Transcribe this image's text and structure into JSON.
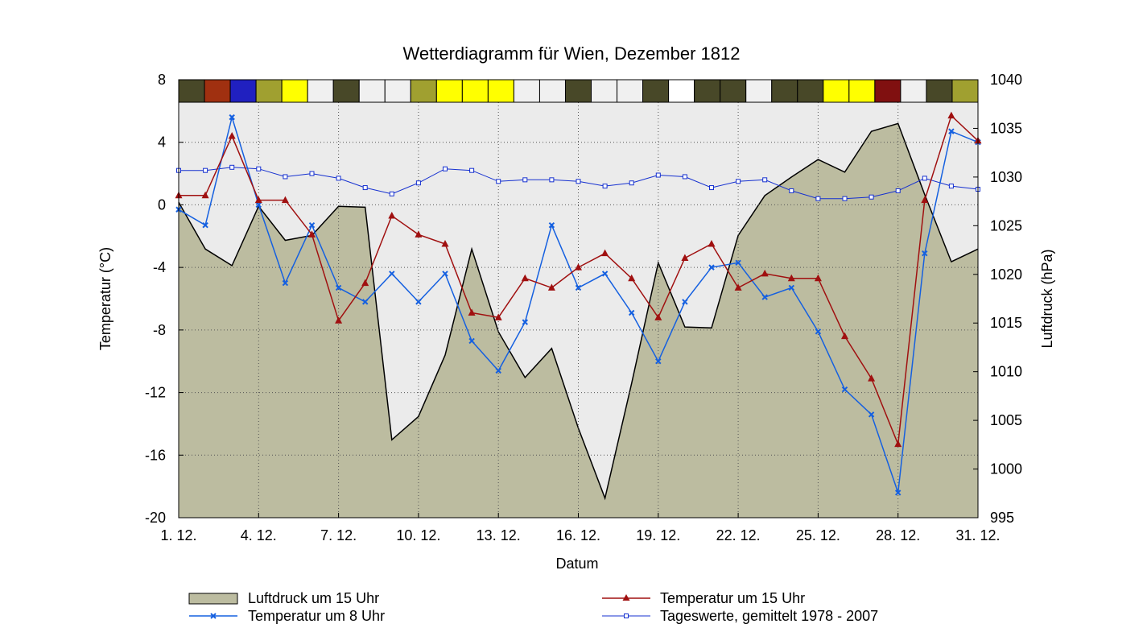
{
  "chart_data": {
    "type": "line",
    "title": "Wetterdiagramm für Wien, Dezember 1812",
    "xlabel": "Datum",
    "ylabel_left": "Temperatur (°C)",
    "ylabel_right": "Luftdruck (hPa)",
    "ylim_left": [
      -20,
      8
    ],
    "ylim_right": [
      995,
      1040
    ],
    "yticks_left": [
      8,
      4,
      0,
      -4,
      -8,
      -12,
      -16,
      -20
    ],
    "yticks_left_labels": [
      "8",
      "4",
      "0",
      "-4",
      "-8",
      "-12",
      "-16",
      "-20"
    ],
    "yticks_right": [
      1040,
      1035,
      1030,
      1025,
      1020,
      1015,
      1010,
      1005,
      1000,
      995
    ],
    "yticks_right_labels": [
      "1040",
      "1035",
      "1030",
      "1025",
      "1020",
      "1015",
      "1010",
      "1005",
      "1000",
      "995"
    ],
    "x": [
      1,
      2,
      3,
      4,
      5,
      6,
      7,
      8,
      9,
      10,
      11,
      12,
      13,
      14,
      15,
      16,
      17,
      18,
      19,
      20,
      21,
      22,
      23,
      24,
      25,
      26,
      27,
      28,
      29,
      30,
      31
    ],
    "x_range": [
      1,
      31
    ],
    "xticks": [
      1,
      4,
      7,
      10,
      13,
      16,
      19,
      22,
      25,
      28,
      31
    ],
    "xtick_labels": [
      "1. 12.",
      "4. 12.",
      "7. 12.",
      "10. 12.",
      "13. 12.",
      "16. 12.",
      "19. 12.",
      "22. 12.",
      "25. 12.",
      "28. 12.",
      "31. 12."
    ],
    "grid": true,
    "series": [
      {
        "name": "Luftdruck um 15 Uhr",
        "kind": "area",
        "axis": "right",
        "color": "#bcbca0",
        "values": [
          1027.4,
          1022.6,
          1020.9,
          1027.0,
          1023.5,
          1024.0,
          1027.0,
          1026.9,
          1003.0,
          1005.4,
          1011.7,
          1022.6,
          1014.1,
          1009.4,
          1012.4,
          1004.2,
          997.0,
          1008.8,
          1021.2,
          1014.6,
          1014.5,
          1024.0,
          1028.1,
          1030.0,
          1031.8,
          1030.5,
          1034.7,
          1035.5,
          1028.2,
          1021.3,
          1022.6
        ]
      },
      {
        "name": "Temperatur um 15 Uhr",
        "kind": "line",
        "axis": "left",
        "color": "#a01010",
        "marker": "triangle",
        "values": [
          0.6,
          0.6,
          4.4,
          0.3,
          0.3,
          -1.9,
          -7.4,
          -5.0,
          -0.7,
          -1.9,
          -2.5,
          -6.9,
          -7.2,
          -4.7,
          -5.3,
          -4.0,
          -3.1,
          -4.7,
          -7.2,
          -3.4,
          -2.5,
          -5.3,
          -4.4,
          -4.7,
          -4.7,
          -8.4,
          -11.1,
          -15.3,
          0.3,
          5.7,
          4.1
        ]
      },
      {
        "name": "Temperatur um 8 Uhr",
        "kind": "line",
        "axis": "left",
        "color": "#1560e0",
        "marker": "x",
        "values": [
          -0.3,
          -1.3,
          5.6,
          0.0,
          -5.0,
          -1.3,
          -5.3,
          -6.2,
          -4.4,
          -6.2,
          -4.4,
          -8.7,
          -10.6,
          -7.5,
          -1.3,
          -5.3,
          -4.4,
          -6.9,
          -10.0,
          -6.2,
          -4.0,
          -3.7,
          -5.9,
          -5.3,
          -8.1,
          -11.8,
          -13.4,
          -18.4,
          -3.1,
          4.7,
          4.0
        ]
      },
      {
        "name": "Tageswerte, gemittelt 1978 - 2007",
        "kind": "line",
        "axis": "left",
        "color": "#1530d0",
        "marker": "square",
        "values": [
          2.2,
          2.2,
          2.4,
          2.3,
          1.8,
          2.0,
          1.7,
          1.1,
          0.7,
          1.4,
          2.3,
          2.2,
          1.5,
          1.6,
          1.6,
          1.5,
          1.2,
          1.4,
          1.9,
          1.8,
          1.1,
          1.5,
          1.6,
          0.9,
          0.4,
          0.4,
          0.5,
          0.9,
          1.7,
          1.2,
          1.0
        ]
      }
    ],
    "weather_band_colors": [
      "#484828",
      "#a03010",
      "#2020c0",
      "#a0a030",
      "#ffff00",
      "#f0f0f0",
      "#484828",
      "#f0f0f0",
      "#f0f0f0",
      "#a0a030",
      "#ffff00",
      "#ffff00",
      "#ffff00",
      "#f0f0f0",
      "#f0f0f0",
      "#484828",
      "#f0f0f0",
      "#f0f0f0",
      "#484828",
      "#ffffff",
      "#484828",
      "#484828",
      "#f0f0f0",
      "#484828",
      "#484828",
      "#ffff00",
      "#ffff00",
      "#801010",
      "#f0f0f0",
      "#484828",
      "#a0a030"
    ],
    "legend": {
      "placement": "bottom",
      "items": [
        "Luftdruck um 15 Uhr",
        "Temperatur um 15 Uhr",
        "Temperatur um 8 Uhr",
        "Tageswerte, gemittelt 1978 - 2007"
      ]
    },
    "colors": {
      "plot_background": "#ebebeb",
      "area_fill": "#bcbca0",
      "area_stroke": "#000000",
      "grid": "#555555"
    }
  }
}
